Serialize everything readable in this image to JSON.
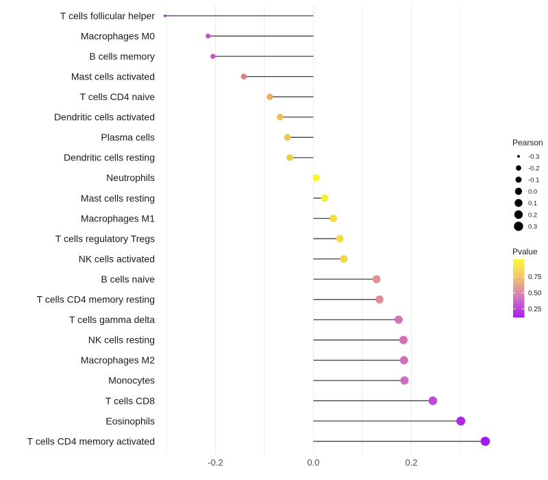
{
  "chart_data": {
    "type": "lollipop",
    "title": "",
    "xlabel": "",
    "ylabel": "",
    "x_ticks": [
      {
        "label": "-0.2",
        "value": -0.2
      },
      {
        "label": "0.0",
        "value": 0.0
      },
      {
        "label": "0.2",
        "value": 0.2
      }
    ],
    "x_range": [
      -0.315,
      0.37
    ],
    "gridline_values": [
      -0.3,
      -0.2,
      -0.1,
      0.0,
      0.1,
      0.2,
      0.3
    ],
    "grid_on": true,
    "legend_position": "right",
    "size_domain": [
      -0.303,
      0.351
    ],
    "points": [
      {
        "category": "T cells follicular helper",
        "pearson": -0.303,
        "color": "#A02BD8"
      },
      {
        "category": "Macrophages M0",
        "pearson": -0.215,
        "color": "#C658C6"
      },
      {
        "category": "B cells memory",
        "pearson": -0.205,
        "color": "#C657CA"
      },
      {
        "category": "Mast cells activated",
        "pearson": -0.142,
        "color": "#DB8187"
      },
      {
        "category": "T cells CD4 naive",
        "pearson": -0.089,
        "color": "#ECAD62"
      },
      {
        "category": "Dendritic cells activated",
        "pearson": -0.068,
        "color": "#F0BE54"
      },
      {
        "category": "Plasma cells",
        "pearson": -0.053,
        "color": "#F3C84B"
      },
      {
        "category": "Dendritic cells resting",
        "pearson": -0.048,
        "color": "#F3CC49"
      },
      {
        "category": "Neutrophils",
        "pearson": 0.006,
        "color": "#F8F42C"
      },
      {
        "category": "Mast cells resting",
        "pearson": 0.023,
        "color": "#F6EE33"
      },
      {
        "category": "Macrophages M1",
        "pearson": 0.041,
        "color": "#F4DF3C"
      },
      {
        "category": "T cells regulatory  Tregs",
        "pearson": 0.054,
        "color": "#F4DC3F"
      },
      {
        "category": "NK cells activated",
        "pearson": 0.062,
        "color": "#F2D644"
      },
      {
        "category": "B cells naive",
        "pearson": 0.129,
        "color": "#E08F92"
      },
      {
        "category": "T cells CD4 memory resting",
        "pearson": 0.135,
        "color": "#DE8B9C"
      },
      {
        "category": "T cells gamma delta",
        "pearson": 0.174,
        "color": "#D474B6"
      },
      {
        "category": "NK cells resting",
        "pearson": 0.184,
        "color": "#D26FBA"
      },
      {
        "category": "Macrophages M2",
        "pearson": 0.185,
        "color": "#D26FBA"
      },
      {
        "category": "Monocytes",
        "pearson": 0.186,
        "color": "#D16DBC"
      },
      {
        "category": "T cells CD8",
        "pearson": 0.244,
        "color": "#C04AD5"
      },
      {
        "category": "Eosinophils",
        "pearson": 0.301,
        "color": "#AC2BE5"
      },
      {
        "category": "T cells CD4 memory activated",
        "pearson": 0.351,
        "color": "#A21AEE"
      }
    ]
  },
  "legends": {
    "pearson": {
      "title": "Pearson",
      "entries": [
        {
          "label": "-0.3",
          "radius": 1.9
        },
        {
          "label": "-0.2",
          "radius": 3.9
        },
        {
          "label": "-0.1",
          "radius": 4.5
        },
        {
          "label": "0.0",
          "radius": 5.2
        },
        {
          "label": "0.1",
          "radius": 5.7
        },
        {
          "label": "0.2",
          "radius": 6.2
        },
        {
          "label": "0.3",
          "radius": 6.7
        }
      ],
      "dot_color": "#000000"
    },
    "pvalue": {
      "title": "Pvalue",
      "tick_labels": [
        "0.75",
        "0.50",
        "0.25"
      ],
      "gradient_stops": [
        "#FCF93B",
        "#F2C56C",
        "#E19A9B",
        "#CD6CC6",
        "#A719F2"
      ]
    }
  },
  "colors": {
    "background": "#FFFFFF",
    "gridline": "#EAEAEA",
    "stem": "#3F3F3F",
    "axis_text": "#4D4D4D",
    "label_text": "#1A1A1A"
  }
}
